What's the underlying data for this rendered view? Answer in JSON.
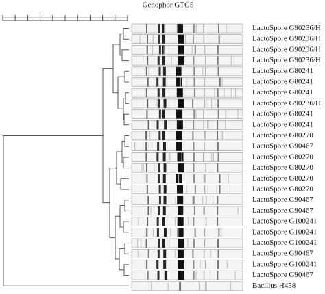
{
  "title": "Genophor GTG5",
  "lanes": [
    "LactoSpore G90236/H",
    "LactoSpore G90236/H",
    "LactoSpore G90236/H",
    "LactoSpore G90236/H",
    "LactoSpore G80241",
    "LactoSpore G80241",
    "LactoSpore G80241",
    "LactoSpore G90236/H",
    "LactoSpore G80241",
    "LactoSpore G80241",
    "LactoSpore G80270",
    "LactoSpore G90467",
    "LactoSpore G80270",
    "LactoSpore G80270",
    "LactoSpore G80270",
    "LactoSpore G80270",
    "LactoSpore G90467",
    "LactoSpore G90467",
    "LactoSpore G100241",
    "LactoSpore G100241",
    "LactoSpore G100241",
    "LactoSpore G90467",
    "LactoSpore G100241",
    "LactoSpore G90467",
    "Bacillus H458"
  ]
}
